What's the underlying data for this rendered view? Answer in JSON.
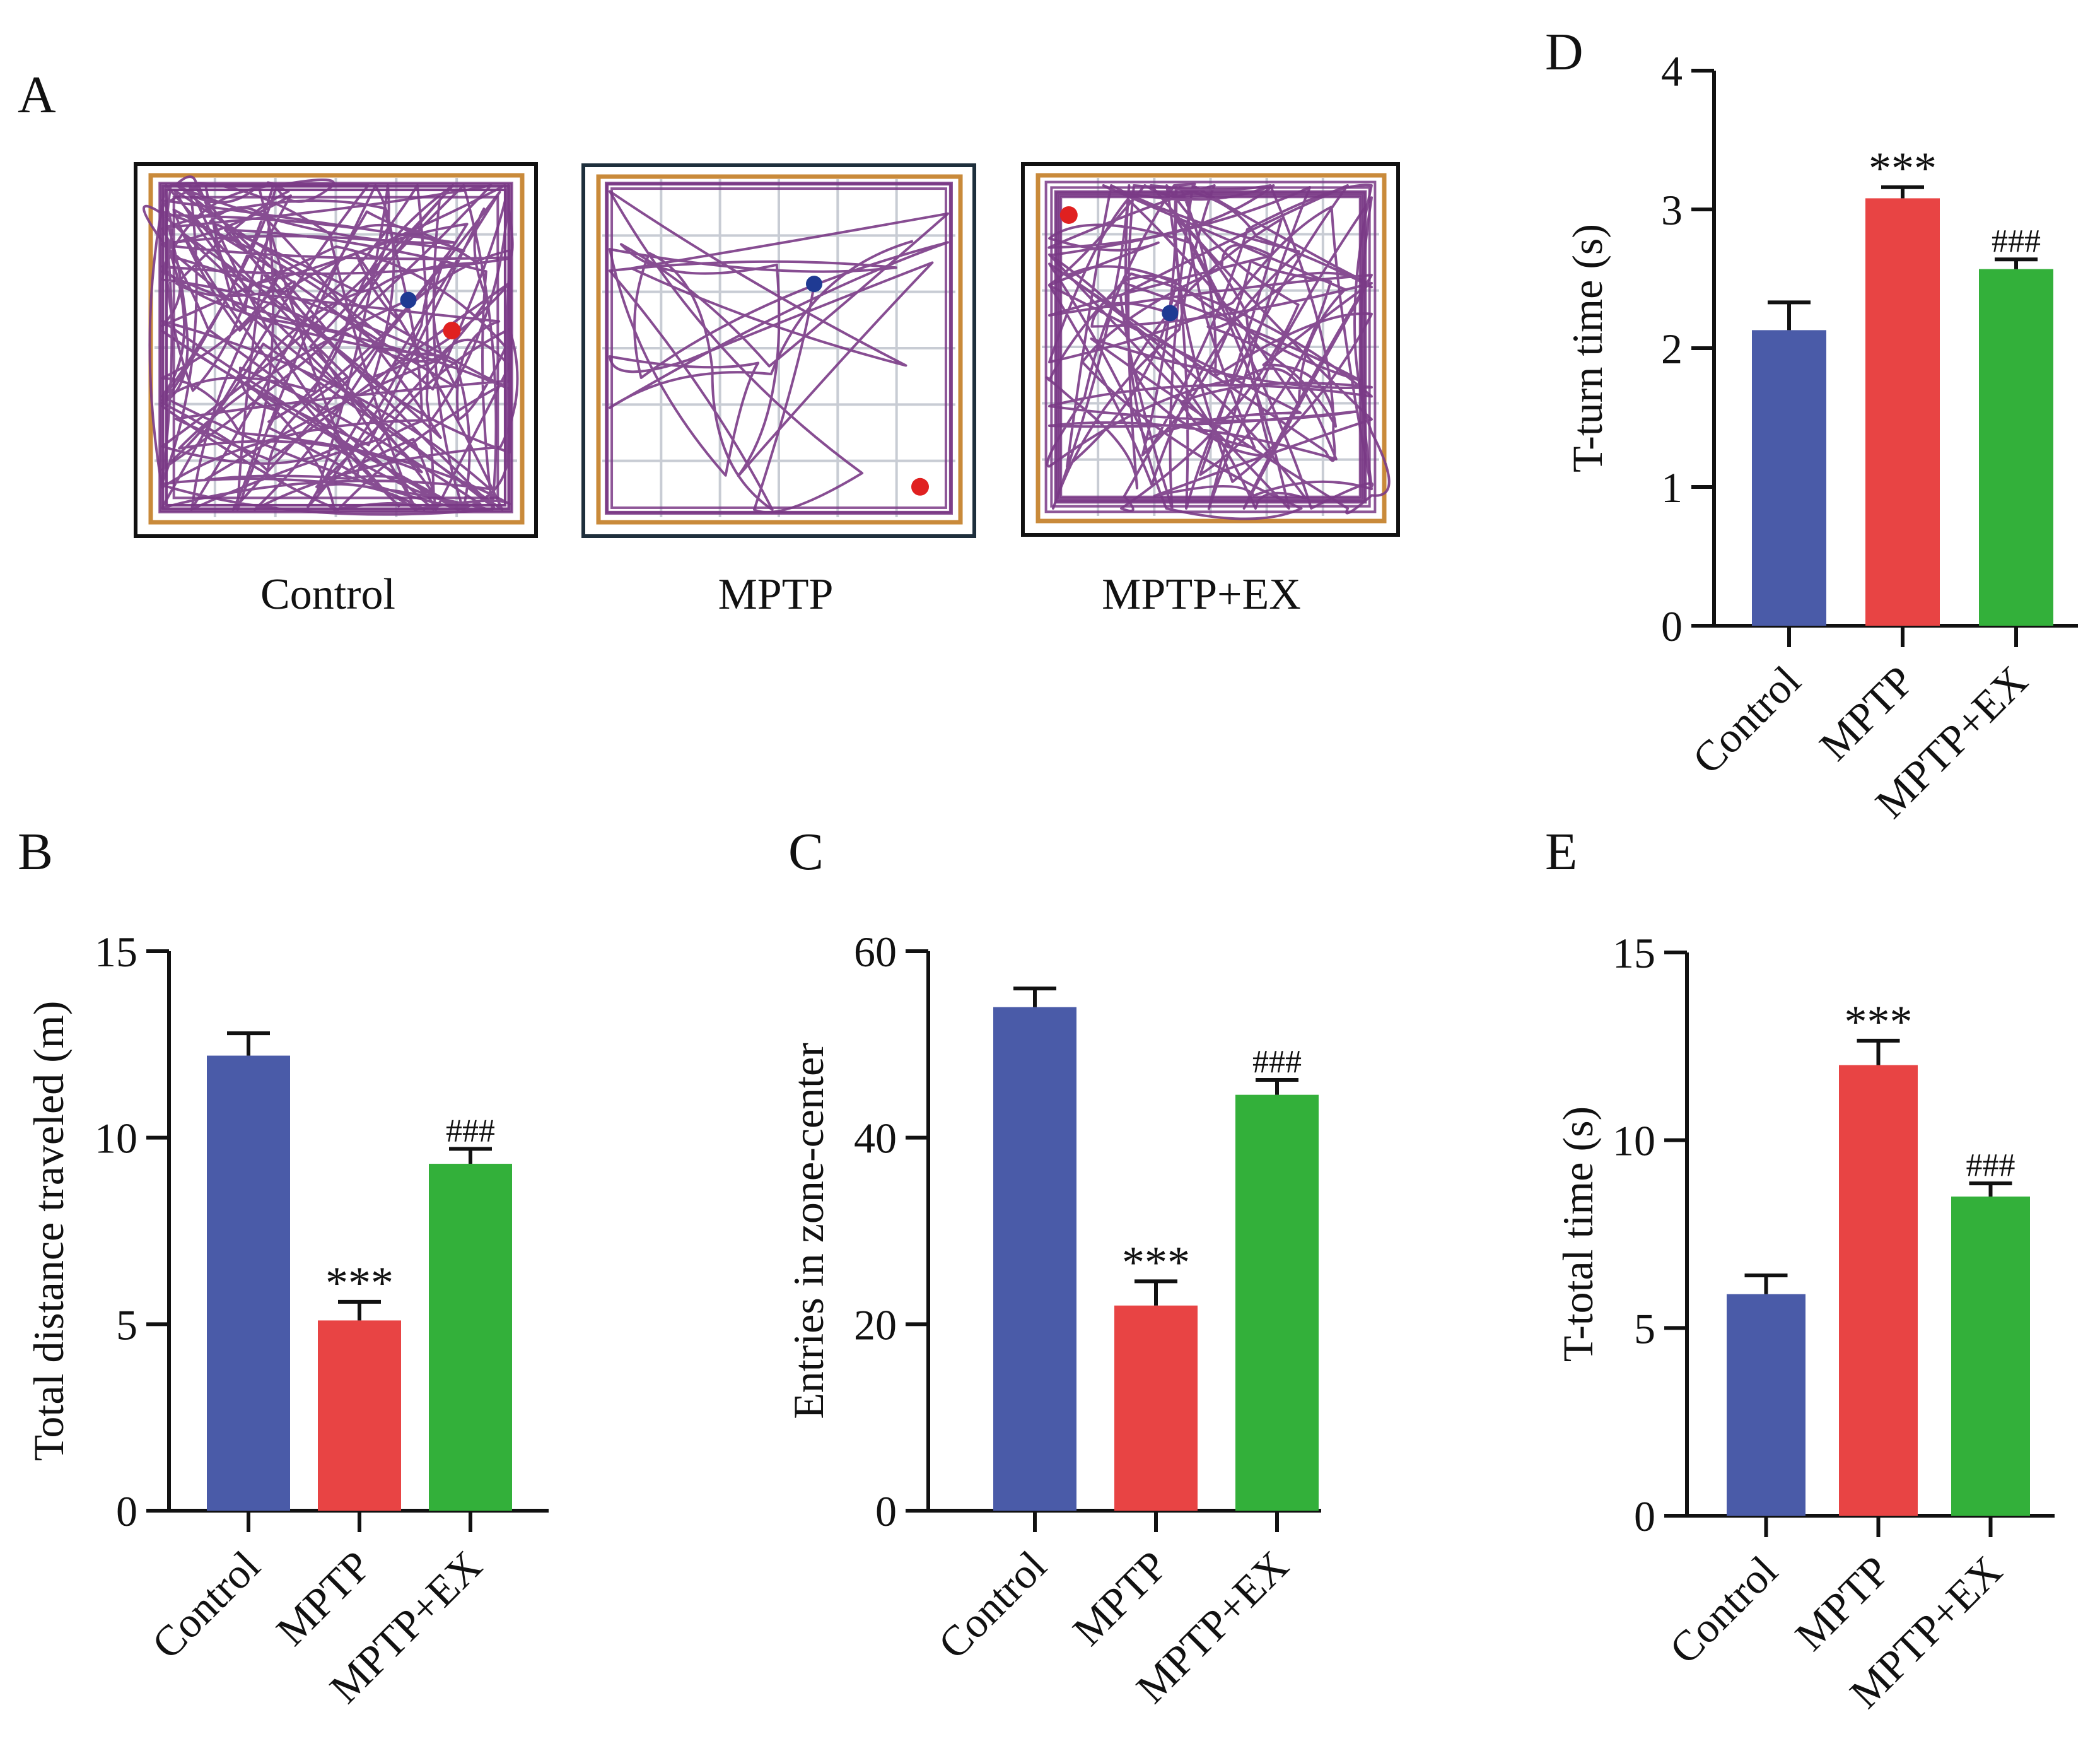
{
  "figure": {
    "panel_labels": {
      "A": "A",
      "B": "B",
      "C": "C",
      "D": "D",
      "E": "E"
    },
    "tracks": [
      {
        "name": "Control",
        "frame_color": "#111111"
      },
      {
        "name": "MPTP",
        "frame_color": "#1e2f3c"
      },
      {
        "name": "MPTP+EX",
        "frame_color": "#111111"
      }
    ],
    "track_colors": {
      "path": "#7a3a86",
      "arena": "#c98a3a",
      "start": "#1f3a93",
      "end": "#e02020",
      "grid": "#c8ccd4"
    }
  },
  "chart_data": [
    {
      "id": "B",
      "type": "bar",
      "categories": [
        "Control",
        "MPTP",
        "MPTP+EX"
      ],
      "values": [
        12.2,
        5.1,
        9.3
      ],
      "errors": [
        0.6,
        0.5,
        0.4
      ],
      "annotations": [
        "",
        "***",
        "###"
      ],
      "colors": [
        "#4a5ba8",
        "#e84444",
        "#33b03a"
      ],
      "ylabel": "Total distance traveled (m)",
      "ylim": [
        0,
        15
      ],
      "yticks": [
        0,
        5,
        10,
        15
      ]
    },
    {
      "id": "C",
      "type": "bar",
      "categories": [
        "Control",
        "MPTP",
        "MPTP+EX"
      ],
      "values": [
        54,
        22,
        44.6
      ],
      "errors": [
        2.0,
        2.6,
        1.6
      ],
      "annotations": [
        "",
        "***",
        "###"
      ],
      "colors": [
        "#4a5ba8",
        "#e84444",
        "#33b03a"
      ],
      "ylabel": "Entries in zone-center",
      "ylim": [
        0,
        60
      ],
      "yticks": [
        0,
        20,
        40,
        60
      ]
    },
    {
      "id": "D",
      "type": "bar",
      "categories": [
        "Control",
        "MPTP",
        "MPTP+EX"
      ],
      "values": [
        2.13,
        3.08,
        2.57
      ],
      "errors": [
        0.2,
        0.08,
        0.07
      ],
      "annotations": [
        "",
        "***",
        "###"
      ],
      "colors": [
        "#4a5ba8",
        "#e84444",
        "#33b03a"
      ],
      "ylabel": "T-turn time (s)",
      "ylim": [
        0,
        4
      ],
      "yticks": [
        0,
        1,
        2,
        3,
        4
      ]
    },
    {
      "id": "E",
      "type": "bar",
      "categories": [
        "Control",
        "MPTP",
        "MPTP+EX"
      ],
      "values": [
        5.9,
        12.0,
        8.5
      ],
      "errors": [
        0.5,
        0.65,
        0.35
      ],
      "annotations": [
        "",
        "***",
        "###"
      ],
      "colors": [
        "#4a5ba8",
        "#e84444",
        "#33b03a"
      ],
      "ylabel": "T-total time (s)",
      "ylim": [
        0,
        15
      ],
      "yticks": [
        0,
        5,
        10,
        15
      ]
    }
  ]
}
